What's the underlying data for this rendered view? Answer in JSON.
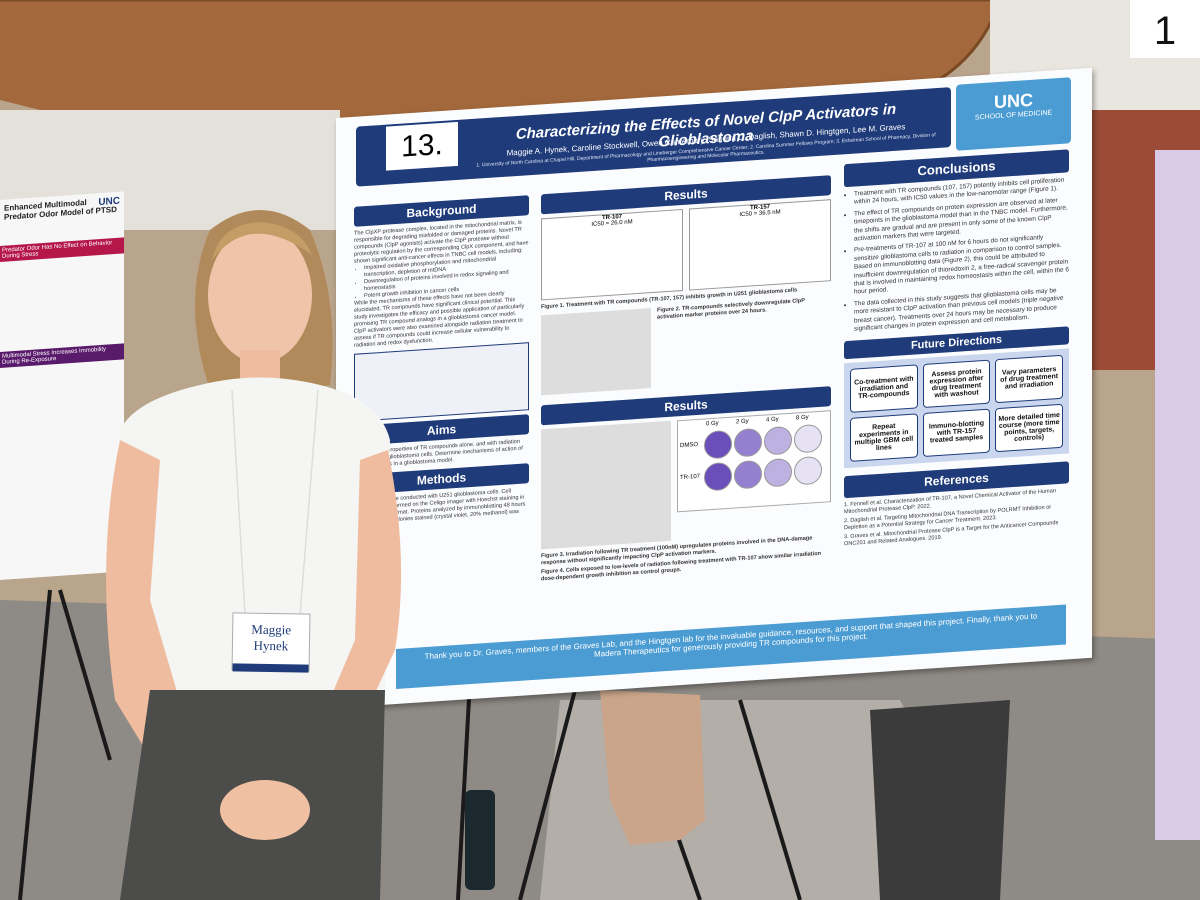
{
  "sign_number": "1",
  "left_poster": {
    "title": "Enhanced Multimodal Predator Odor Model of PTSD",
    "logo": "UNC",
    "banner1": "Predator Odor Has No Effect on Behavior During Stress",
    "banner2": "Multimodal Stress Increases Immobility During Re-Exposure"
  },
  "poster": {
    "number": "13.",
    "title": "Characterizing the Effects of Novel ClpP Activators in Glioblastoma",
    "authors": "Maggie A. Hynek, Caroline Stockwell, Owen Canterbury, Sabrina C. Daglish, Shawn D. Hingtgen, Lee M. Graves",
    "affiliations": "1. University of North Carolina at Chapel Hill, Department of Pharmacology and Lineberger Comprehensive Cancer Center; 2. Carolina Summer Fellows Program; 3. Eshelman School of Pharmacy, Division of Pharmacoengineering and Molecular Pharmaceutics.",
    "logo": "UNC",
    "logo_sub": "SCHOOL OF MEDICINE",
    "background": {
      "heading": "Background",
      "text": "The ClpXP protease complex, located in the mitochondrial matrix, is responsible for degrading misfolded or damaged proteins. Novel TR compounds (ClpP agonists) activate the ClpP protease without proteolytic regulation by the corresponding ClpX component, and have shown significant anti-cancer effects in TNBC cell models, including:",
      "bullets": [
        "Impaired oxidative phosphorylation and mitochondrial transcription, depletion of mtDNA",
        "Downregulation of proteins involved in redox signaling and homeostasis",
        "Potent growth inhibition in cancer cells"
      ],
      "text2": "While the mechanisms of these effects have not been clearly elucidated, TR compounds have significant clinical potential. This study investigates the efficacy and possible application of particularly promising TR compound analogs in a glioblastoma cancer model. ClpP activators were also examined alongside radiation treatment to assess if TR compounds could increase cellular vulnerability to radiation and redox dysfunction."
    },
    "aims": {
      "heading": "Aims",
      "text": "Characterize properties of TR compounds alone, and with radiation treatments in glioblastoma cells. Determine mechanisms of action of TR compounds in a glioblastoma model."
    },
    "methods": {
      "heading": "Methods",
      "text": "Experiments were conducted with U251 glioblastoma cells. Cell viability was performed on the Celigo imager with Hoechst staining in a 96-well plate format. Proteins analyzed by immunoblotting 48 hours after radiation. Colonies stained (crystal violet, 20% methanol) was used."
    },
    "results1": {
      "heading": "Results",
      "plot_a": "TR-107",
      "ic50_a": "IC50 = 26.0 nM",
      "plot_b": "TR-157",
      "ic50_b": "IC50 = 36.5 nM",
      "fig1": "Figure 1. Treatment with TR compounds (TR-107, 157) inhibits growth in U251 glioblastoma cells",
      "fig2": "Figure 2. TR-compounds selectively downregulate ClpP activation marker proteins over 24 hours."
    },
    "results2": {
      "heading": "Results",
      "doses": [
        "0 Gy",
        "2 Gy",
        "4 Gy",
        "8 Gy"
      ],
      "rows": [
        "DMSO",
        "TR-107"
      ],
      "fig3": "Figure 3. Irradiation following TR treatment (100nM) upregulates proteins involved in the DNA-damage response without significantly impacting ClpP activation markers.",
      "fig4": "Figure 4. Cells exposed to low-levels of radiation following treatment with TR-107 show similar irradiation dose-dependent growth inhibition as control groups."
    },
    "conclusions": {
      "heading": "Conclusions",
      "bullets": [
        "Treatment with TR compounds (107, 157) potently inhibits cell proliferation within 24 hours, with IC50 values in the low-nanomolar range (Figure 1).",
        "The effect of TR compounds on protein expression are observed at later timepoints in the glioblastoma model than in the TNBC model. Furthermore, the shifts are gradual and are present in only some of the known ClpP activation markers that were targeted.",
        "Pre-treatments of TR-107 at 100 nM for 6 hours do not significantly sensitize glioblastoma cells to radiation in comparison to control samples. Based on immunoblotting data (Figure 2), this could be attributed to insufficient downregulation of thioredoxin 2, a free-radical scavenger protein that is involved in maintaining redox homeostasis within the cell, within the 6 hour period.",
        "The data collected in this study suggests that glioblastoma cells may be more resistant to ClpP activation than previous cell models (triple negative breast cancer). Treatments over 24 hours may be necessary to produce significant changes in protein expression and cell metabolism."
      ]
    },
    "future": {
      "heading": "Future Directions",
      "boxes": [
        "Co-treatment with irradiation and TR-compounds",
        "Assess protein expression after drug treatment with washout",
        "Vary parameters of drug treatment and irradiation",
        "Repeat experiments in multiple GBM cell lines",
        "Immuno-blotting with TR-157 treated samples",
        "More detailed time course (more time points, targets, controls)"
      ]
    },
    "references": {
      "heading": "References",
      "items": [
        "1. Fennell et al. Characterization of TR-107, a Novel Chemical Activator of the Human Mitochondrial Protease ClpP. 2022.",
        "2. Daglish et al. Targeting Mitochondrial DNA Transcription by POLRMT Inhibition or Depletion as a Potential Strategy for Cancer Treatment. 2023.",
        "3. Graves et al. Mitochondrial Protease ClpP is a Target for the Anticancer Compounds ONC201 and Related Analogues. 2019."
      ]
    },
    "acknowledgement": "Thank you to Dr. Graves, members of the Graves Lab, and the Hingtgen lab for the invaluable guidance, resources, and support that shaped this project. Finally, thank you to Madera Therapeutics for generously providing TR compounds for this project."
  },
  "badge": {
    "name": "Maggie Hynek"
  }
}
